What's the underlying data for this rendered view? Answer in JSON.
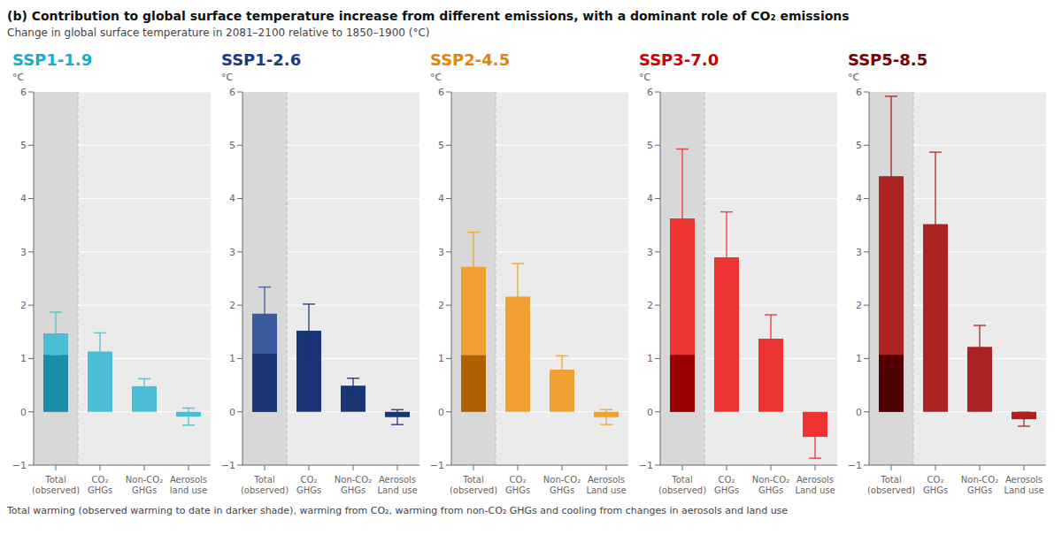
{
  "title": "(b) Contribution to global surface temperature increase from different emissions, with a dominant role of CO₂ emissions",
  "subtitle": "Change in global surface temperature in 2081–2100 relative to 1850–1900 (°C)",
  "annotations": [
    "Total warming (observed warming to date in darker shade), warming from CO₂, warming from non-CO₂ GHGs and cooling from changes in aerosols and land use"
  ],
  "chart_data": [
    {
      "type": "bar",
      "title": "SSP1-1.9",
      "color": "#1AACCA",
      "ylabel": "°C",
      "categories": [
        "Total\n(observed)",
        "CO₂\nGHGs",
        "Non-CO₂\nGHGs",
        "Aerosols\nland use"
      ],
      "series": [
        {
          "values": [
            1.47,
            1.13,
            0.48,
            -0.09
          ],
          "colors": [
            "#4BBDD4",
            "#4BBDD4",
            "#4BBDD4",
            "#4BBDD4"
          ],
          "error_low": [
            0.4,
            0.35,
            0.14,
            0.16
          ],
          "error_high": [
            0.4,
            0.35,
            0.14,
            0.16
          ]
        },
        {
          "values": [
            1.07,
            null,
            null,
            null
          ],
          "color": "#1A8FAA"
        }
      ],
      "ylim": [
        -1,
        6
      ],
      "yticks": [
        {
          "value": -1,
          "label": "−1"
        },
        0,
        1,
        2,
        3,
        4,
        5,
        6
      ],
      "grid": true
    },
    {
      "type": "bar",
      "title": "SSP1-2.6",
      "color": "#1A3A8A",
      "ylabel": "°C",
      "categories": [
        "Total\n(observed)",
        "CO₂\nGHGs",
        "Non-CO₂\nGHGs",
        "Aerosols\nLand use"
      ],
      "series": [
        {
          "values": [
            1.84,
            1.52,
            0.49,
            -0.1
          ],
          "colors": [
            "#3A5AA0",
            "#1A3575",
            "#1A3575",
            "#1A3575"
          ],
          "error_low": [
            0.5,
            0.5,
            0.14,
            0.14
          ],
          "error_high": [
            0.5,
            0.5,
            0.14,
            0.14
          ]
        },
        {
          "values": [
            1.09,
            null,
            null,
            null
          ],
          "color": "#1A3575"
        }
      ],
      "ylim": [
        -1,
        6
      ],
      "yticks": [
        {
          "value": -1,
          "label": "−1"
        },
        0,
        1,
        2,
        3,
        4,
        5,
        6
      ],
      "grid": true
    },
    {
      "type": "bar",
      "title": "SSP2-4.5",
      "color": "#E8820C",
      "ylabel": "°C",
      "categories": [
        "Total\n(observed)",
        "CO₂\nGHGs",
        "Non-CO₂\nGHGs",
        "Aerosols\nLand use"
      ],
      "series": [
        {
          "values": [
            2.72,
            2.16,
            0.79,
            -0.1
          ],
          "colors": [
            "#EFA030",
            "#EFA030",
            "#EFA030",
            "#EFA030"
          ],
          "error_low": [
            0.65,
            0.62,
            0.26,
            0.14
          ],
          "error_high": [
            0.65,
            0.62,
            0.26,
            0.14
          ]
        },
        {
          "values": [
            1.06,
            null,
            null,
            null
          ],
          "color": "#B06000"
        }
      ],
      "ylim": [
        -1,
        6
      ],
      "yticks": [
        {
          "value": -1,
          "label": "−1"
        },
        0,
        1,
        2,
        3,
        4,
        5,
        6
      ],
      "grid": true
    },
    {
      "type": "bar",
      "title": "SSP3-7.0",
      "color": "#CC0000",
      "ylabel": "°C",
      "categories": [
        "Total\n(observed)",
        "CO₂\nGHGs",
        "Non-CO₂\nGHGs",
        "Aerosols\nLand use"
      ],
      "series": [
        {
          "values": [
            3.63,
            2.9,
            1.37,
            -0.47
          ],
          "colors": [
            "#EE3333",
            "#EE3333",
            "#EE3333",
            "#EE3333"
          ],
          "error_low": [
            1.3,
            0.85,
            0.45,
            0.4
          ],
          "error_high": [
            1.3,
            0.85,
            0.45,
            0.4
          ]
        },
        {
          "values": [
            1.07,
            null,
            null,
            null
          ],
          "color": "#990000"
        }
      ],
      "ylim": [
        -1,
        6
      ],
      "yticks": [
        {
          "value": -1,
          "label": "−1"
        },
        0,
        1,
        2,
        3,
        4,
        5,
        6
      ],
      "grid": true
    },
    {
      "type": "bar",
      "title": "SSP5-8.5",
      "color": "#7B0000",
      "ylabel": "°C",
      "categories": [
        "Total\n(observed)",
        "CO₂\nGHGs",
        "Non-CO₂\nGHGs",
        "Aerosols\nLand use"
      ],
      "series": [
        {
          "values": [
            4.42,
            3.52,
            1.22,
            -0.14
          ],
          "colors": [
            "#AA2222",
            "#AA2222",
            "#AA2222",
            "#AA2222"
          ],
          "error_low": [
            1.5,
            1.35,
            0.4,
            0.13
          ],
          "error_high": [
            1.5,
            1.35,
            0.4,
            0.13
          ]
        },
        {
          "values": [
            1.07,
            null,
            null,
            null
          ],
          "color": "#500000"
        }
      ],
      "ylim": [
        -1,
        6
      ],
      "yticks": [
        {
          "value": -1,
          "label": "−1"
        },
        0,
        1,
        2,
        3,
        4,
        5,
        6
      ],
      "grid": true
    }
  ]
}
